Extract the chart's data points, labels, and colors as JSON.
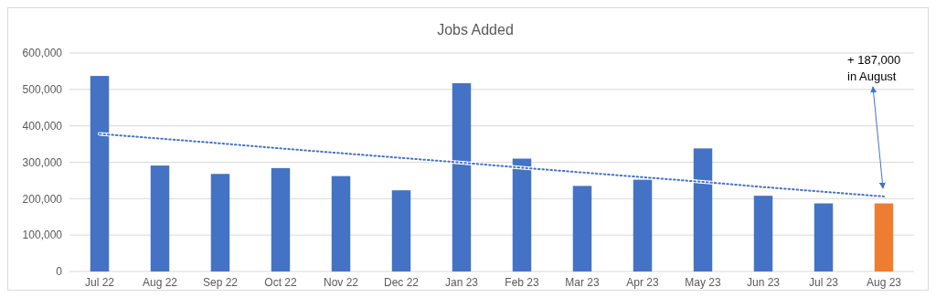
{
  "chart_data": {
    "type": "bar",
    "title": "Jobs Added",
    "categories": [
      "Jul 22",
      "Aug 22",
      "Sep 22",
      "Oct 22",
      "Nov 22",
      "Dec 22",
      "Jan 23",
      "Feb 23",
      "Mar 23",
      "Apr 23",
      "May 23",
      "Jun 23",
      "Jul 23",
      "Aug 23"
    ],
    "series": [
      {
        "values": [
          537000,
          291000,
          268000,
          284000,
          262000,
          223000,
          517000,
          310000,
          235000,
          252000,
          338000,
          208000,
          187000,
          187000
        ],
        "colors": [
          "#4472c4",
          "#4472c4",
          "#4472c4",
          "#4472c4",
          "#4472c4",
          "#4472c4",
          "#4472c4",
          "#4472c4",
          "#4472c4",
          "#4472c4",
          "#4472c4",
          "#4472c4",
          "#4472c4",
          "#ed7d31"
        ]
      },
      {
        "type": "line",
        "values": [
          378000,
          365000,
          352000,
          338000,
          325000,
          312000,
          299000,
          285000,
          272000,
          259000,
          246000,
          232000,
          219000,
          206000
        ],
        "color": "#4472c4",
        "line_style": "dotted"
      }
    ],
    "ylim": [
      0,
      600000
    ],
    "yticks": [
      {
        "value": 0,
        "label": "0"
      },
      {
        "value": 100000,
        "label": "100,000"
      },
      {
        "value": 200000,
        "label": "200,000"
      },
      {
        "value": 300000,
        "label": "300,000"
      },
      {
        "value": 400000,
        "label": "400,000"
      },
      {
        "value": 500000,
        "label": "500,000"
      },
      {
        "value": 600000,
        "label": "600,000"
      }
    ],
    "grid": "y",
    "annotations": [
      "+ 187,000\nin August"
    ]
  }
}
